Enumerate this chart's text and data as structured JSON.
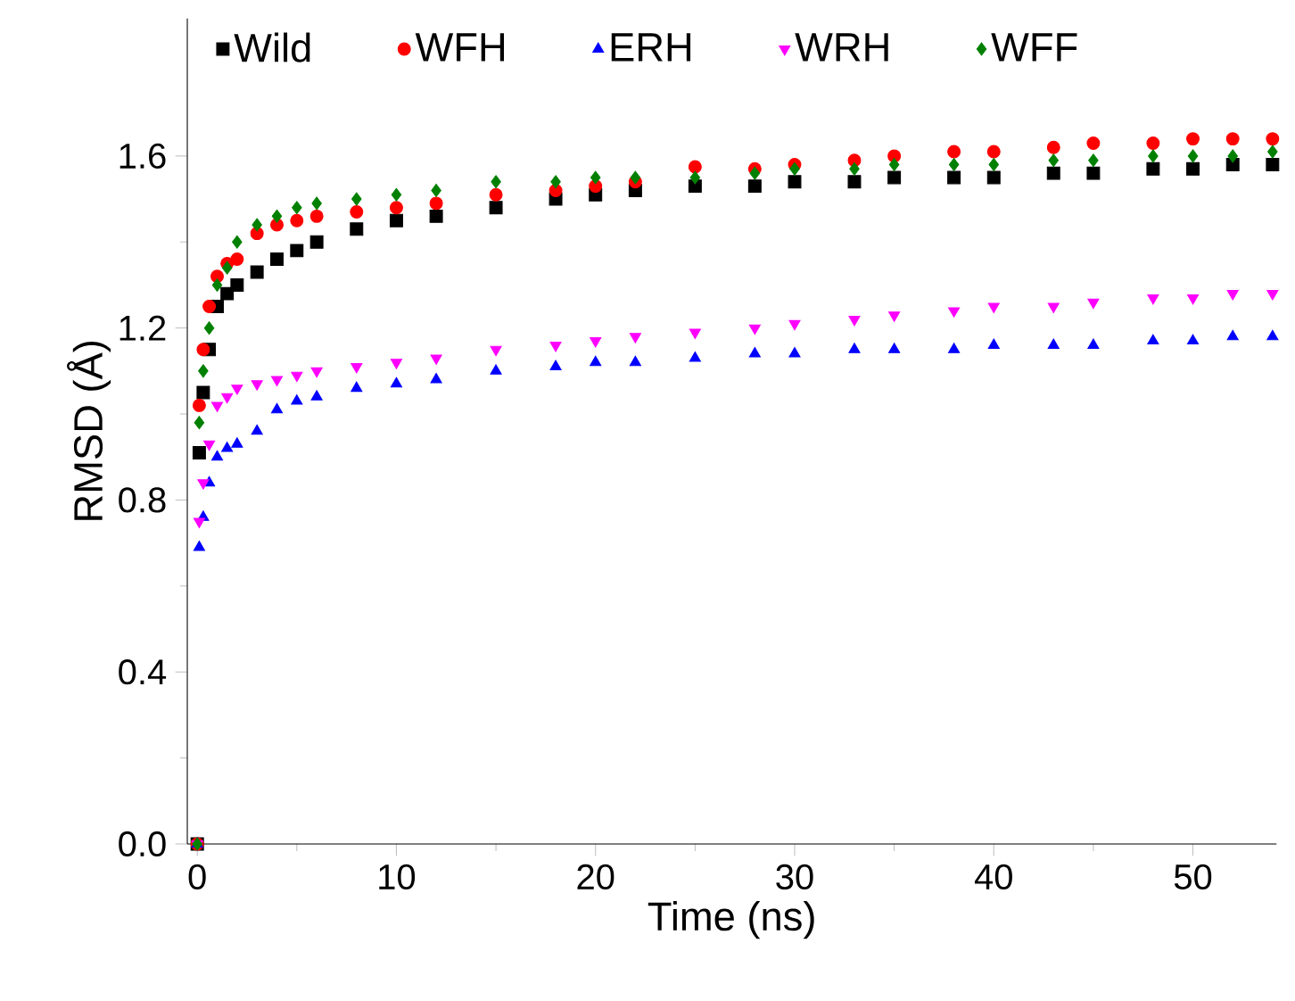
{
  "chart_data": {
    "type": "scatter",
    "xlabel": "Time (ns)",
    "ylabel": "RMSD (Å)",
    "xlim": [
      -0.5,
      54.2
    ],
    "ylim": [
      0,
      1.92
    ],
    "xticks": [
      0,
      10,
      20,
      30,
      40,
      50
    ],
    "yticks": [
      {
        "value": 0,
        "label": "0.0"
      },
      {
        "value": 0.4,
        "label": "0.4"
      },
      {
        "value": 0.8,
        "label": "0.8"
      },
      {
        "value": 1.2,
        "label": "1.2"
      },
      {
        "value": 1.6,
        "label": "1.6"
      }
    ],
    "legend": "top",
    "grid": false,
    "series": [
      {
        "name": "Wild",
        "color": "#000000",
        "marker": "square",
        "x": [
          0,
          0.1,
          0.3,
          0.6,
          1,
          1.5,
          2,
          3,
          4,
          5,
          6,
          8,
          10,
          12,
          15,
          18,
          20,
          22,
          25,
          28,
          30,
          33,
          35,
          38,
          40,
          43,
          45,
          48,
          50,
          52,
          54
        ],
        "values": [
          0,
          0.91,
          1.05,
          1.15,
          1.25,
          1.28,
          1.3,
          1.33,
          1.36,
          1.38,
          1.4,
          1.43,
          1.45,
          1.46,
          1.48,
          1.5,
          1.51,
          1.52,
          1.53,
          1.53,
          1.54,
          1.54,
          1.55,
          1.55,
          1.55,
          1.56,
          1.56,
          1.57,
          1.57,
          1.58,
          1.58
        ]
      },
      {
        "name": "WFH",
        "color": "#ff0000",
        "marker": "circle",
        "x": [
          0,
          0.1,
          0.3,
          0.6,
          1,
          1.5,
          2,
          3,
          4,
          5,
          6,
          8,
          10,
          12,
          15,
          18,
          20,
          22,
          25,
          28,
          30,
          33,
          35,
          38,
          40,
          43,
          45,
          48,
          50,
          52,
          54
        ],
        "values": [
          0,
          1.02,
          1.15,
          1.25,
          1.32,
          1.35,
          1.36,
          1.42,
          1.44,
          1.45,
          1.46,
          1.47,
          1.48,
          1.49,
          1.51,
          1.52,
          1.53,
          1.54,
          1.575,
          1.57,
          1.58,
          1.59,
          1.6,
          1.61,
          1.61,
          1.62,
          1.63,
          1.63,
          1.64,
          1.64,
          1.64
        ]
      },
      {
        "name": "ERH",
        "color": "#0000ff",
        "marker": "triangle",
        "x": [
          0,
          0.1,
          0.3,
          0.6,
          1,
          1.5,
          2,
          3,
          4,
          5,
          6,
          8,
          10,
          12,
          15,
          18,
          20,
          22,
          25,
          28,
          30,
          33,
          35,
          38,
          40,
          43,
          45,
          48,
          50,
          52,
          54
        ],
        "values": [
          0,
          0.69,
          0.76,
          0.84,
          0.9,
          0.92,
          0.93,
          0.96,
          1.01,
          1.03,
          1.04,
          1.06,
          1.07,
          1.08,
          1.1,
          1.11,
          1.12,
          1.12,
          1.13,
          1.14,
          1.14,
          1.15,
          1.15,
          1.15,
          1.16,
          1.16,
          1.16,
          1.17,
          1.17,
          1.18,
          1.18
        ]
      },
      {
        "name": "WRH",
        "color": "#ff00ff",
        "marker": "triangle-down",
        "x": [
          0,
          0.1,
          0.3,
          0.6,
          1,
          1.5,
          2,
          3,
          4,
          5,
          6,
          8,
          10,
          12,
          15,
          18,
          20,
          22,
          25,
          28,
          30,
          33,
          35,
          38,
          40,
          43,
          45,
          48,
          50,
          52,
          54
        ],
        "values": [
          0,
          0.75,
          0.84,
          0.93,
          1.02,
          1.04,
          1.06,
          1.07,
          1.08,
          1.09,
          1.1,
          1.11,
          1.12,
          1.13,
          1.15,
          1.16,
          1.17,
          1.18,
          1.19,
          1.2,
          1.21,
          1.22,
          1.23,
          1.24,
          1.25,
          1.25,
          1.26,
          1.27,
          1.27,
          1.28,
          1.28
        ]
      },
      {
        "name": "WFF",
        "color": "#008000",
        "marker": "diamond",
        "x": [
          0,
          0.1,
          0.3,
          0.6,
          1,
          1.5,
          2,
          3,
          4,
          5,
          6,
          8,
          10,
          12,
          15,
          18,
          20,
          22,
          25,
          28,
          30,
          33,
          35,
          38,
          40,
          43,
          45,
          48,
          50,
          52,
          54
        ],
        "values": [
          0,
          0.98,
          1.1,
          1.2,
          1.3,
          1.34,
          1.4,
          1.44,
          1.46,
          1.48,
          1.49,
          1.5,
          1.51,
          1.52,
          1.54,
          1.54,
          1.55,
          1.55,
          1.55,
          1.56,
          1.57,
          1.57,
          1.58,
          1.58,
          1.58,
          1.59,
          1.59,
          1.6,
          1.6,
          1.6,
          1.61
        ]
      }
    ]
  }
}
